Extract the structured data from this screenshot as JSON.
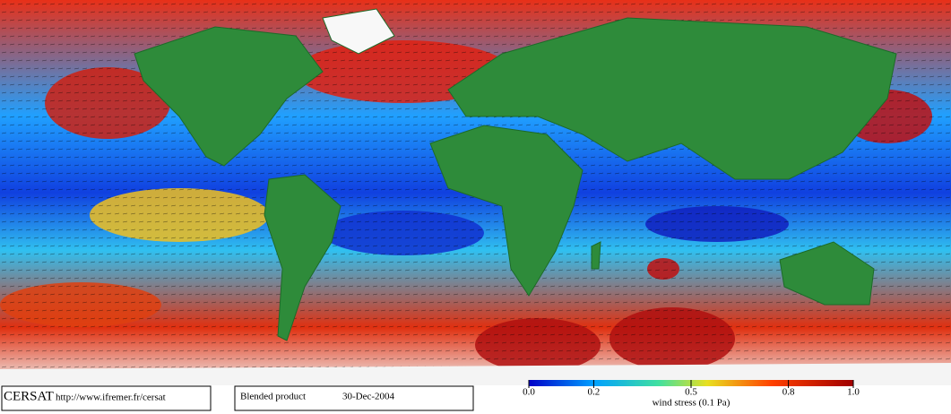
{
  "footer": {
    "logo": "CERSAT",
    "url": "http://www.ifremer.fr/cersat",
    "product": "Blended product",
    "date": "30-Dec-2004"
  },
  "colorbar": {
    "ticks": [
      {
        "value": 0,
        "label": "0.0"
      },
      0.2,
      0.5,
      0.8,
      {
        "value": 1,
        "label": "1.0"
      }
    ],
    "label": "wind stress (0.1 Pa)"
  }
}
